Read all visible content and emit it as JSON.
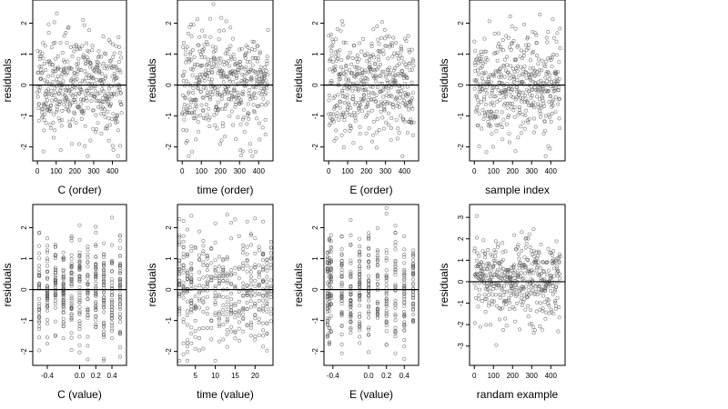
{
  "chart_data": [
    {
      "type": "scatter",
      "xlabel": "C (order)",
      "ylabel": "residuals",
      "xlim": [
        -25,
        475
      ],
      "ylim": [
        -2.45,
        2.75
      ],
      "xticks": [
        0,
        100,
        200,
        300,
        400
      ],
      "xtick_labels": [
        "0",
        "100",
        "200",
        "300",
        "400"
      ],
      "yticks": [
        -2,
        -1,
        0,
        1,
        2
      ],
      "ytick_labels": [
        "-2",
        "-1",
        "0",
        "1",
        "2"
      ],
      "reference_line_y": 0,
      "point_style": "open circles",
      "x_kind": "order",
      "n": 450,
      "seed": 11,
      "y_sd": 0.85
    },
    {
      "type": "scatter",
      "xlabel": "time (order)",
      "ylabel": "residuals",
      "xlim": [
        -25,
        475
      ],
      "ylim": [
        -2.45,
        2.75
      ],
      "xticks": [
        0,
        100,
        200,
        300,
        400
      ],
      "xtick_labels": [
        "0",
        "100",
        "200",
        "300",
        "400"
      ],
      "yticks": [
        -2,
        -1,
        0,
        1,
        2
      ],
      "ytick_labels": [
        "-2",
        "-1",
        "0",
        "1",
        "2"
      ],
      "reference_line_y": 0,
      "point_style": "open circles",
      "x_kind": "order",
      "n": 450,
      "seed": 23,
      "y_sd": 0.85
    },
    {
      "type": "scatter",
      "xlabel": "E (order)",
      "ylabel": "residuals",
      "xlim": [
        -25,
        475
      ],
      "ylim": [
        -2.45,
        2.75
      ],
      "xticks": [
        0,
        100,
        200,
        300,
        400
      ],
      "xtick_labels": [
        "0",
        "100",
        "200",
        "300",
        "400"
      ],
      "yticks": [
        -2,
        -1,
        0,
        1,
        2
      ],
      "ytick_labels": [
        "-2",
        "-1",
        "0",
        "1",
        "2"
      ],
      "reference_line_y": 0,
      "point_style": "open circles",
      "x_kind": "order",
      "n": 450,
      "seed": 37,
      "y_sd": 0.85
    },
    {
      "type": "scatter",
      "xlabel": "sample index",
      "ylabel": "residuals",
      "xlim": [
        -25,
        475
      ],
      "ylim": [
        -2.45,
        2.75
      ],
      "xticks": [
        0,
        100,
        200,
        300,
        400
      ],
      "xtick_labels": [
        "0",
        "100",
        "200",
        "300",
        "400"
      ],
      "yticks": [
        -2,
        -1,
        0,
        1,
        2
      ],
      "ytick_labels": [
        "-2",
        "-1",
        "0",
        "1",
        "2"
      ],
      "reference_line_y": 0,
      "point_style": "open circles",
      "x_kind": "order",
      "n": 450,
      "seed": 41,
      "y_sd": 0.85
    },
    {
      "type": "scatter",
      "xlabel": "C (value)",
      "ylabel": "residuals",
      "xlim": [
        -0.58,
        0.58
      ],
      "ylim": [
        -2.45,
        2.75
      ],
      "xticks": [
        -0.4,
        0.0,
        0.2,
        0.4
      ],
      "xtick_labels": [
        "-0.4",
        "0.0",
        "0.2",
        "0.4"
      ],
      "yticks": [
        -2,
        -1,
        0,
        1,
        2
      ],
      "ytick_labels": [
        "-2",
        "-1",
        "0",
        "1",
        "2"
      ],
      "reference_line_y": 0,
      "point_style": "open circles",
      "x_kind": "discrete",
      "x_levels": [
        -0.5,
        -0.4,
        -0.3,
        -0.2,
        -0.1,
        0.0,
        0.1,
        0.2,
        0.3,
        0.4,
        0.5
      ],
      "n": 450,
      "seed": 53,
      "y_sd": 0.85
    },
    {
      "type": "scatter",
      "xlabel": "time (value)",
      "ylabel": "residuals",
      "xlim": [
        0.5,
        24.5
      ],
      "ylim": [
        -2.45,
        2.75
      ],
      "xticks": [
        5,
        10,
        15,
        20
      ],
      "xtick_labels": [
        "5",
        "10",
        "15",
        "20"
      ],
      "yticks": [
        -2,
        -1,
        0,
        1,
        2
      ],
      "ytick_labels": [
        "-2",
        "-1",
        "0",
        "1",
        "2"
      ],
      "reference_line_y": 0,
      "point_style": "open circles",
      "x_kind": "discrete",
      "x_levels": [
        1,
        2,
        3,
        4,
        5,
        6,
        7,
        8,
        9,
        10,
        11,
        12,
        13,
        14,
        15,
        16,
        17,
        18,
        19,
        20,
        21,
        22,
        23,
        24
      ],
      "n": 450,
      "seed": 67,
      "y_sd": 0.85
    },
    {
      "type": "scatter",
      "xlabel": "E (value)",
      "ylabel": "residuals",
      "xlim": [
        -0.5,
        0.56
      ],
      "ylim": [
        -2.45,
        2.75
      ],
      "xticks": [
        -0.4,
        0.0,
        0.2,
        0.4
      ],
      "xtick_labels": [
        "-0.4",
        "0.0",
        "0.2",
        "0.4"
      ],
      "yticks": [
        -2,
        -1,
        0,
        1,
        2
      ],
      "ytick_labels": [
        "-2",
        "-1",
        "0",
        "1",
        "2"
      ],
      "reference_line_y": 0,
      "point_style": "open circles",
      "x_kind": "discrete",
      "x_levels": [
        -0.46,
        -0.44,
        -0.42,
        -0.3,
        -0.2,
        -0.1,
        0.0,
        0.1,
        0.2,
        0.3,
        0.4,
        0.5
      ],
      "n": 450,
      "seed": 79,
      "y_sd": 0.85
    },
    {
      "type": "scatter",
      "xlabel": "randam example",
      "ylabel": "residuals",
      "xlim": [
        -25,
        475
      ],
      "ylim": [
        -3.9,
        3.6
      ],
      "xticks": [
        0,
        100,
        200,
        300,
        400
      ],
      "xtick_labels": [
        "0",
        "100",
        "200",
        "300",
        "400"
      ],
      "yticks": [
        -3,
        -2,
        -1,
        0,
        1,
        2,
        3
      ],
      "ytick_labels": [
        "-3",
        "-2",
        "-1",
        "0",
        "1",
        "2",
        "3"
      ],
      "reference_line_y": 0,
      "point_style": "open circles",
      "x_kind": "order",
      "n": 450,
      "seed": 97,
      "y_sd": 1.0
    }
  ]
}
